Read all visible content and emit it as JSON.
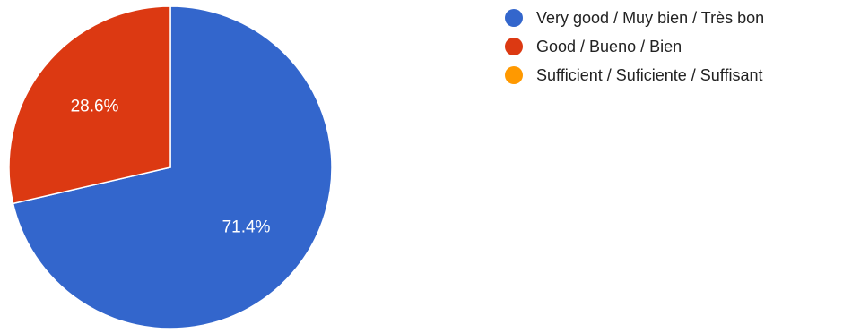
{
  "chart_data": {
    "type": "pie",
    "categories": [
      "Very good / Muy bien / Très bon",
      "Good / Bueno / Bien",
      "Sufficient / Suficiente / Suffisant"
    ],
    "values": [
      71.4,
      28.6,
      0
    ],
    "labels": [
      "71.4%",
      "28.6%",
      ""
    ],
    "colors": [
      "#3366cc",
      "#dc3912",
      "#ff9900"
    ],
    "legend_position": "right",
    "start_angle": "top",
    "direction": "clockwise",
    "label_color": "#ffffff"
  }
}
